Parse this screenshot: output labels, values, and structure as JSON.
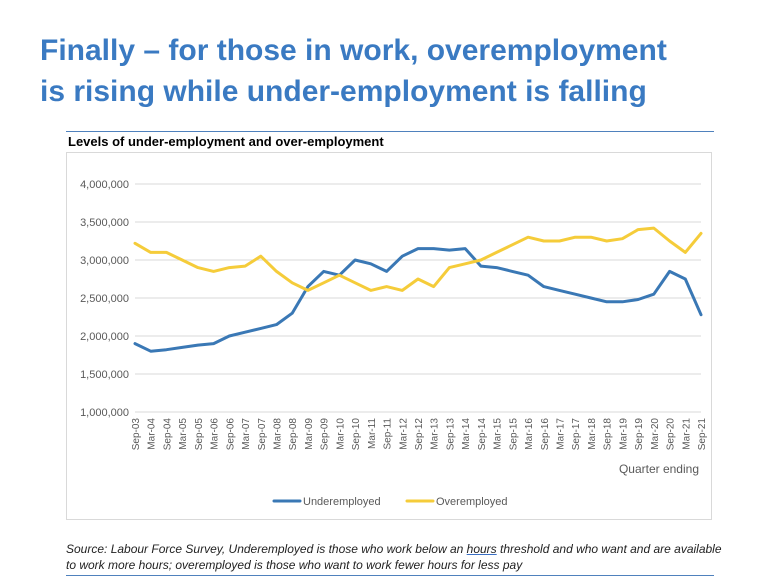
{
  "headline": {
    "line1": "Finally – for those in work, overemployment",
    "line2": "is rising while under-employment is falling"
  },
  "chart_data": {
    "type": "line",
    "title": "Levels of under-employment and over-employment",
    "xlabel": "Quarter ending",
    "ylabel": "",
    "ylim": [
      1000000,
      4000000
    ],
    "yticks": [
      "1,000,000",
      "1,500,000",
      "2,000,000",
      "2,500,000",
      "3,000,000",
      "3,500,000",
      "4,000,000"
    ],
    "ytick_values": [
      1000000,
      1500000,
      2000000,
      2500000,
      3000000,
      3500000,
      4000000
    ],
    "grid": true,
    "legend_position": "bottom",
    "categories": [
      "Sep-03",
      "Mar-04",
      "Sep-04",
      "Mar-05",
      "Sep-05",
      "Mar-06",
      "Sep-06",
      "Mar-07",
      "Sep-07",
      "Mar-08",
      "Sep-08",
      "Mar-09",
      "Sep-09",
      "Mar-10",
      "Sep-10",
      "Mar-11",
      "Sep-11",
      "Mar-12",
      "Sep-12",
      "Mar-13",
      "Sep-13",
      "Mar-14",
      "Sep-14",
      "Mar-15",
      "Sep-15",
      "Mar-16",
      "Sep-16",
      "Mar-17",
      "Sep-17",
      "Mar-18",
      "Sep-18",
      "Mar-19",
      "Sep-19",
      "Mar-20",
      "Sep-20",
      "Mar-21",
      "Sep-21"
    ],
    "series": [
      {
        "name": "Underemployed",
        "color": "#3a78b5",
        "values": [
          1900000,
          1800000,
          1820000,
          1850000,
          1880000,
          1900000,
          2000000,
          2050000,
          2100000,
          2150000,
          2300000,
          2650000,
          2850000,
          2800000,
          3000000,
          2950000,
          2850000,
          3050000,
          3150000,
          3150000,
          3130000,
          3150000,
          2920000,
          2900000,
          2850000,
          2800000,
          2650000,
          2600000,
          2550000,
          2500000,
          2450000,
          2450000,
          2480000,
          2550000,
          2850000,
          2750000,
          2280000
        ]
      },
      {
        "name": "Overemployed",
        "color": "#f5cc3a",
        "values": [
          3220000,
          3100000,
          3100000,
          3000000,
          2900000,
          2850000,
          2900000,
          2920000,
          3050000,
          2850000,
          2700000,
          2600000,
          2700000,
          2800000,
          2700000,
          2600000,
          2650000,
          2600000,
          2750000,
          2650000,
          2900000,
          2950000,
          3000000,
          3100000,
          3200000,
          3300000,
          3250000,
          3250000,
          3300000,
          3300000,
          3250000,
          3280000,
          3400000,
          3420000,
          3250000,
          3100000,
          3350000
        ]
      }
    ]
  },
  "source_note": {
    "p1": "Source: Labour Force Survey, ",
    "p2": "Underemployed is those who work below an ",
    "p3": "hours",
    "p4": " threshold and who want and are available to work more hours; overemployed is those who want to work fewer hours for less pay"
  }
}
